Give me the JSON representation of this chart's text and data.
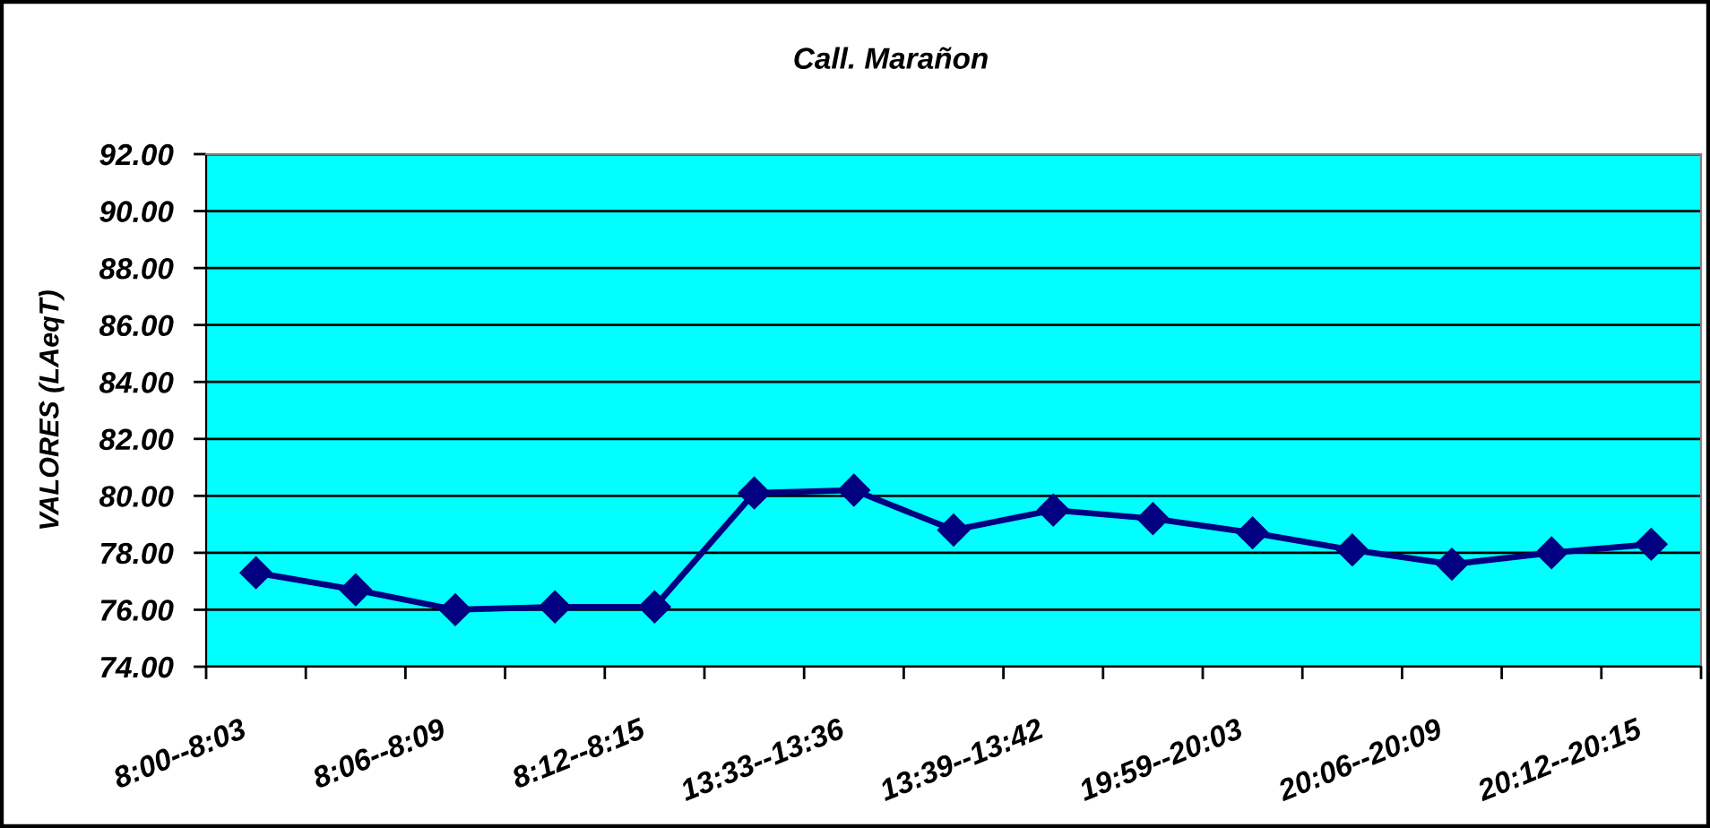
{
  "chart_data": {
    "type": "line",
    "title": "Call. Marañon",
    "ylabel": "VALORES (LAeqT)",
    "categories": [
      "8:00--8:03",
      null,
      "8:06--8:09",
      null,
      "8:12--8:15",
      null,
      "13:33--13:36",
      null,
      "13:39--13:42",
      null,
      "19:59--20:03",
      null,
      "20:06--20:09",
      null,
      "20:12--20:15"
    ],
    "series": [
      {
        "color": "#000080",
        "values": [
          77.3,
          76.7,
          76.0,
          76.1,
          76.1,
          80.1,
          80.2,
          78.8,
          79.5,
          79.2,
          78.7,
          78.1,
          77.6,
          78.0,
          78.3
        ]
      }
    ],
    "ylim": [
      74,
      92
    ],
    "yticks": [
      {
        "value": 74,
        "label": "74.00"
      },
      {
        "value": 76,
        "label": "76.00"
      },
      {
        "value": 78,
        "label": "78.00"
      },
      {
        "value": 80,
        "label": "80.00"
      },
      {
        "value": 82,
        "label": "82.00"
      },
      {
        "value": 84,
        "label": "84.00"
      },
      {
        "value": 86,
        "label": "86.00"
      },
      {
        "value": 88,
        "label": "88.00"
      },
      {
        "value": 90,
        "label": "90.00"
      },
      {
        "value": 92,
        "label": "92.00"
      }
    ],
    "grid": "y",
    "marker": "diamond",
    "line_style": "solid"
  }
}
